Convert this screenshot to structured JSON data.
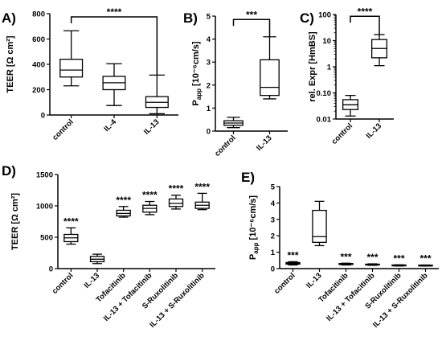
{
  "chart_data": [
    {
      "id": "A",
      "type": "box",
      "panel_label": "A)",
      "ylabel": "TEER [Ω cm²]",
      "ylim": [
        0,
        800
      ],
      "yticks": [
        0,
        200,
        400,
        600,
        800
      ],
      "categories": [
        "control",
        "IL-4",
        "IL-13"
      ],
      "boxes": [
        {
          "min": 230,
          "q1": 300,
          "median": 355,
          "q3": 440,
          "max": 665
        },
        {
          "min": 75,
          "q1": 200,
          "median": 255,
          "q3": 305,
          "max": 405
        },
        {
          "min": 10,
          "q1": 60,
          "median": 100,
          "q3": 145,
          "max": 315
        }
      ],
      "brackets": [
        {
          "from": 0,
          "to": 2,
          "y": 775,
          "label": "****"
        }
      ]
    },
    {
      "id": "B",
      "type": "box",
      "panel_label": "B)",
      "ylabel": "P_app [10⁻⁶cm/s]",
      "ylim": [
        0,
        5
      ],
      "yticks": [
        0,
        1,
        2,
        3,
        4,
        5
      ],
      "categories": [
        "control",
        "IL-13"
      ],
      "boxes": [
        {
          "min": 0.15,
          "q1": 0.25,
          "median": 0.35,
          "q3": 0.45,
          "max": 0.6
        },
        {
          "min": 1.4,
          "q1": 1.55,
          "median": 1.9,
          "q3": 3.1,
          "max": 4.1
        }
      ],
      "brackets": [
        {
          "from": 0,
          "to": 1,
          "y": 4.85,
          "label": "***"
        }
      ]
    },
    {
      "id": "C",
      "type": "box",
      "panel_label": "C)",
      "ylabel": "rel. Expr [HmBS]",
      "scale": "log",
      "ylim": [
        0.01,
        100
      ],
      "yticks": [
        0.01,
        0.1,
        1,
        10,
        100
      ],
      "ytick_labels": [
        "0.01",
        "0.10",
        "1",
        "10",
        "100"
      ],
      "categories": [
        "control",
        "IL-13"
      ],
      "boxes": [
        {
          "min": 0.013,
          "q1": 0.023,
          "median": 0.035,
          "q3": 0.055,
          "max": 0.08
        },
        {
          "min": 1.1,
          "q1": 2.2,
          "median": 5.0,
          "q3": 11,
          "max": 17
        }
      ],
      "brackets": [
        {
          "from": 0,
          "to": 1,
          "y": 85,
          "label": "****"
        }
      ]
    },
    {
      "id": "D",
      "type": "box",
      "panel_label": "D)",
      "ylabel": "TEER [Ω cm²]",
      "ylim": [
        0,
        1500
      ],
      "yticks": [
        0,
        500,
        1000,
        1500
      ],
      "categories": [
        "control",
        "IL-13",
        "Tofacitinib",
        "IL-13 + Tofacitinib",
        "S-Ruxolitinib",
        "IL-13 + S-Ruxolitinib"
      ],
      "boxes": [
        {
          "min": 390,
          "q1": 430,
          "median": 490,
          "q3": 545,
          "max": 650
        },
        {
          "min": 80,
          "q1": 110,
          "median": 150,
          "q3": 195,
          "max": 230
        },
        {
          "min": 820,
          "q1": 840,
          "median": 880,
          "q3": 930,
          "max": 990
        },
        {
          "min": 860,
          "q1": 900,
          "median": 960,
          "q3": 1010,
          "max": 1070
        },
        {
          "min": 950,
          "q1": 990,
          "median": 1040,
          "q3": 1110,
          "max": 1170
        },
        {
          "min": 940,
          "q1": 960,
          "median": 1010,
          "q3": 1060,
          "max": 1200
        }
      ],
      "significance": [
        "****",
        "",
        "****",
        "****",
        "****",
        "****"
      ]
    },
    {
      "id": "E",
      "type": "box",
      "panel_label": "E)",
      "ylabel": "P_app [10⁻⁶cm/s]",
      "ylim": [
        0,
        5
      ],
      "yticks": [
        0,
        1,
        2,
        3,
        4,
        5
      ],
      "categories": [
        "control",
        "IL-13",
        "Tofacitinib",
        "IL-13 + Tofacitinib",
        "S-Ruxolitinib",
        "IL-13 + S-Ruxolitinib"
      ],
      "boxes": [
        {
          "min": 0.22,
          "q1": 0.27,
          "median": 0.32,
          "q3": 0.37,
          "max": 0.42
        },
        {
          "min": 1.4,
          "q1": 1.6,
          "median": 1.95,
          "q3": 3.55,
          "max": 4.1
        },
        {
          "min": 0.22,
          "q1": 0.25,
          "median": 0.28,
          "q3": 0.31,
          "max": 0.33
        },
        {
          "min": 0.2,
          "q1": 0.23,
          "median": 0.25,
          "q3": 0.27,
          "max": 0.29
        },
        {
          "min": 0.16,
          "q1": 0.18,
          "median": 0.2,
          "q3": 0.22,
          "max": 0.23
        },
        {
          "min": 0.16,
          "q1": 0.18,
          "median": 0.19,
          "q3": 0.21,
          "max": 0.22
        }
      ],
      "significance": [
        "***",
        "",
        "***",
        "***",
        "***",
        "***"
      ]
    }
  ]
}
